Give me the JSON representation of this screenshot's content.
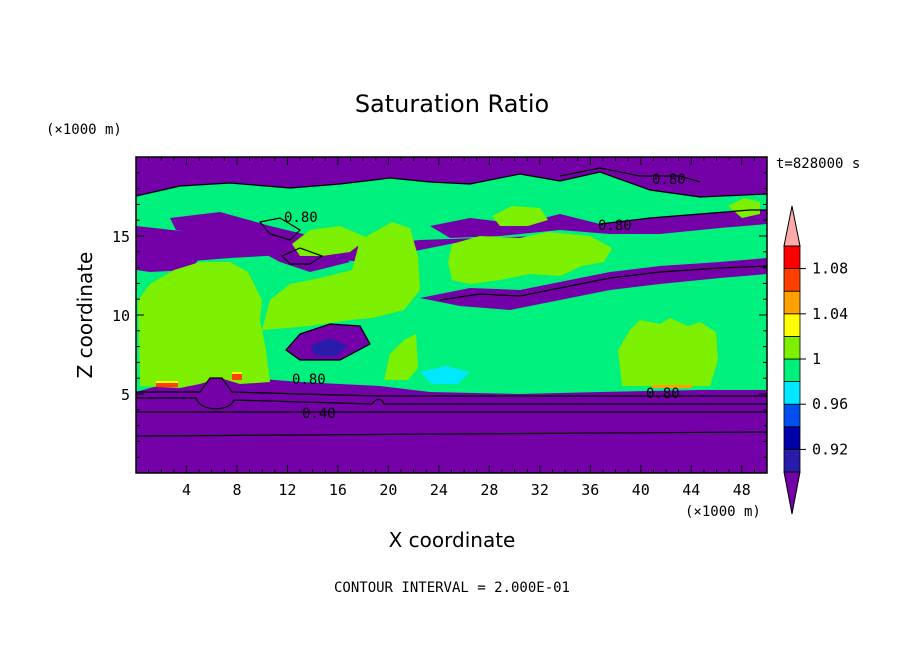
{
  "chart_data": {
    "type": "contour",
    "title": "Saturation Ratio",
    "xlabel": "X coordinate",
    "ylabel": "Z coordinate",
    "x_unit": "(×1000 m)",
    "y_unit": "(×1000 m)",
    "time_label": "t=828000 s",
    "footer": "CONTOUR INTERVAL = 2.000E-01",
    "xlim": [
      0,
      50
    ],
    "ylim": [
      0,
      20
    ],
    "x_ticks": [
      "4",
      "8",
      "12",
      "16",
      "20",
      "24",
      "28",
      "32",
      "36",
      "40",
      "44",
      "48"
    ],
    "y_ticks": [
      "5",
      "10",
      "15"
    ],
    "colorbar": {
      "levels": [
        0.9,
        0.92,
        0.94,
        0.96,
        0.98,
        1.0,
        1.02,
        1.04,
        1.06,
        1.08,
        1.1
      ],
      "labels": [
        "0.92",
        "0.96",
        "1",
        "1.04",
        "1.08"
      ],
      "colors": [
        "#7400a8",
        "#2a1caa",
        "#0000a8",
        "#0050f0",
        "#00e8ff",
        "#00f07e",
        "#7cf000",
        "#ffff00",
        "#ffa000",
        "#ff4000",
        "#ff0000",
        "#ffaaaa"
      ]
    },
    "contour_labels": [
      "0.80",
      "0.80",
      "0.80",
      "0.80",
      "0.80",
      "0.40"
    ]
  }
}
